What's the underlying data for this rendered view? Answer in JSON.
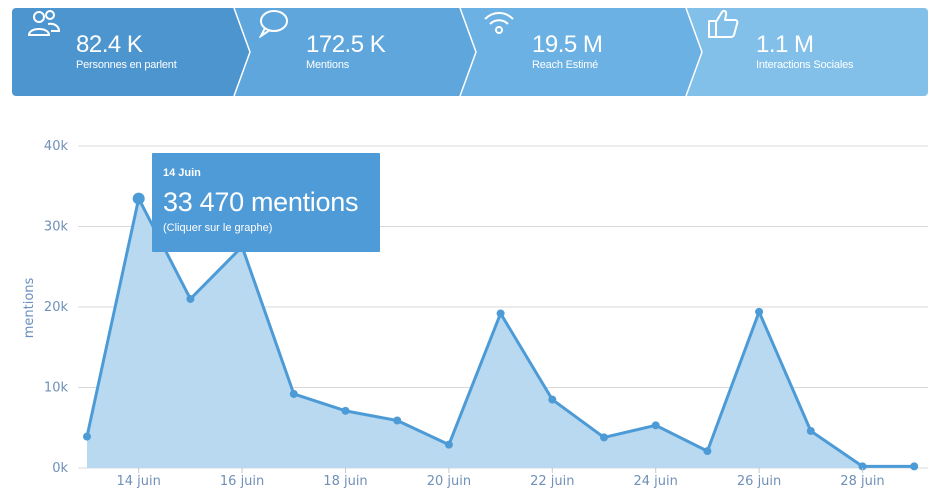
{
  "kpis": [
    {
      "value": "82.4 K",
      "label": "Personnes en parlent",
      "icon": "people-icon"
    },
    {
      "value": "172.5 K",
      "label": "Mentions",
      "icon": "speech-bubble-icon"
    },
    {
      "value": "19.5 M",
      "label": "Reach Estimé",
      "icon": "wifi-signal-icon"
    },
    {
      "value": "1.1 M",
      "label": "Interactions Sociales",
      "icon": "thumbs-up-icon"
    }
  ],
  "colors": {
    "kpi_1": "#4d95cf",
    "kpi_2": "#5ea6dc",
    "kpi_3": "#6bb1e3",
    "kpi_4": "#82c0ea",
    "line": "#4d9bd6",
    "area": "#b8d9f0",
    "tooltip": "#4f9bd8"
  },
  "tooltip": {
    "date": "14 Juin",
    "value_text": "33 470 mentions",
    "hint": "(Cliquer sur le graphe)"
  },
  "chart_data": {
    "type": "area",
    "x": [
      "13 juin",
      "14 juin",
      "15 juin",
      "16 juin",
      "17 juin",
      "18 juin",
      "19 juin",
      "20 juin",
      "21 juin",
      "22 juin",
      "23 juin",
      "24 juin",
      "25 juin",
      "26 juin",
      "27 juin",
      "28 juin",
      "29 juin"
    ],
    "values": [
      3900,
      33470,
      21000,
      27500,
      9200,
      7100,
      5900,
      2900,
      19200,
      8500,
      3800,
      5300,
      2100,
      19400,
      4600,
      200,
      200
    ],
    "xtick_labels": [
      "14 juin",
      "16 juin",
      "18 juin",
      "20 juin",
      "22 juin",
      "24 juin",
      "26 juin",
      "28 juin"
    ],
    "ytick_labels": [
      "0k",
      "10k",
      "20k",
      "30k",
      "40k"
    ],
    "ylim": [
      0,
      40000
    ],
    "ylabel": "mentions",
    "xlabel": "",
    "title": "",
    "grid": true,
    "highlighted_point": "14 juin"
  }
}
